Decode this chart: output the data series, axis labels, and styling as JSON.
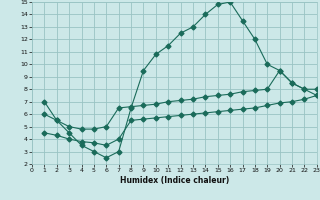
{
  "xlabel": "Humidex (Indice chaleur)",
  "bg_color": "#cce8e8",
  "grid_color": "#99c4c4",
  "line_color": "#1a6b5a",
  "xlim": [
    0,
    23
  ],
  "ylim": [
    2,
    15
  ],
  "xticks": [
    0,
    1,
    2,
    3,
    4,
    5,
    6,
    7,
    8,
    9,
    10,
    11,
    12,
    13,
    14,
    15,
    16,
    17,
    18,
    19,
    20,
    21,
    22,
    23
  ],
  "yticks": [
    2,
    3,
    4,
    5,
    6,
    7,
    8,
    9,
    10,
    11,
    12,
    13,
    14,
    15
  ],
  "curve1_x": [
    1,
    2,
    3,
    4,
    5,
    6,
    7,
    8,
    9,
    10,
    11,
    12,
    13,
    14,
    15,
    16,
    17,
    18,
    19,
    20,
    21,
    22,
    23
  ],
  "curve1_y": [
    7.0,
    5.5,
    4.5,
    3.5,
    3.0,
    2.5,
    3.0,
    6.5,
    9.5,
    10.8,
    11.5,
    12.5,
    13.0,
    14.0,
    14.8,
    15.0,
    13.5,
    12.0,
    10.0,
    9.5,
    8.5,
    8.0,
    8.0
  ],
  "curve2_x": [
    1,
    2,
    3,
    4,
    5,
    6,
    7,
    8,
    9,
    10,
    11,
    12,
    13,
    14,
    15,
    16,
    17,
    18,
    19,
    20,
    21,
    22,
    23
  ],
  "curve2_y": [
    6.0,
    5.5,
    5.0,
    4.8,
    4.8,
    5.0,
    6.5,
    6.6,
    6.7,
    6.8,
    7.0,
    7.1,
    7.2,
    7.4,
    7.5,
    7.6,
    7.8,
    7.9,
    8.0,
    9.5,
    8.5,
    8.0,
    7.5
  ],
  "curve3_x": [
    1,
    2,
    3,
    4,
    5,
    6,
    7,
    8,
    9,
    10,
    11,
    12,
    13,
    14,
    15,
    16,
    17,
    18,
    19,
    20,
    21,
    22,
    23
  ],
  "curve3_y": [
    4.5,
    4.3,
    4.0,
    3.8,
    3.7,
    3.5,
    4.0,
    5.5,
    5.6,
    5.7,
    5.8,
    5.9,
    6.0,
    6.1,
    6.2,
    6.3,
    6.4,
    6.5,
    6.7,
    6.9,
    7.0,
    7.2,
    7.5
  ],
  "markersize": 2.5
}
